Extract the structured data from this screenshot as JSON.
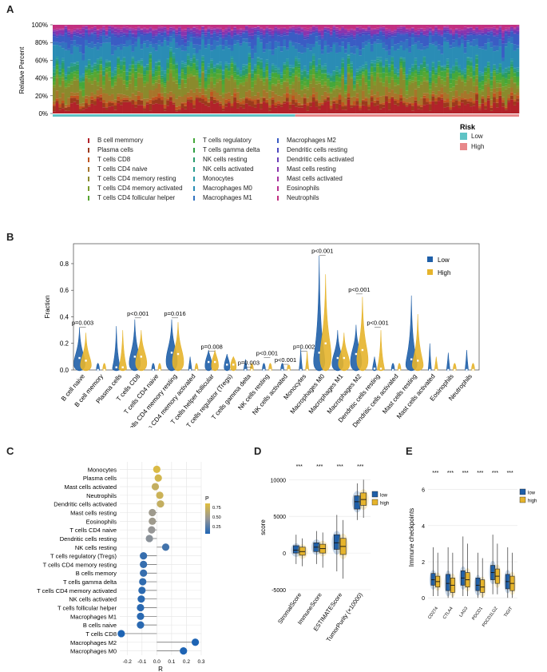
{
  "panels": [
    "A",
    "B",
    "C",
    "D",
    "E"
  ],
  "panelA": {
    "ylabel": "Relative Percent",
    "yticks": [
      "100%",
      "80%",
      "60%",
      "40%",
      "20%",
      "0%"
    ],
    "risk_legend": {
      "title": "Risk",
      "items": [
        {
          "label": "Low",
          "color": "#5fc3c5"
        },
        {
          "label": "High",
          "color": "#e8888a"
        }
      ]
    },
    "cell_types": [
      {
        "label": "B cell memmory",
        "color": "#b2222a"
      },
      {
        "label": "Plasma cells",
        "color": "#9c3a1c"
      },
      {
        "label": "T cells CD8",
        "color": "#c0541f"
      },
      {
        "label": "T cells CD4 naive",
        "color": "#a7752a"
      },
      {
        "label": "T cells CD4 memory resting",
        "color": "#8a8a2c"
      },
      {
        "label": "T cells CD4 memory activated",
        "color": "#7a9c2c"
      },
      {
        "label": "T cells CD4 follicular helper",
        "color": "#58a632"
      },
      {
        "label": "T cells regulatory",
        "color": "#44a83a"
      },
      {
        "label": "T cells gamma delta",
        "color": "#2e9e42"
      },
      {
        "label": "NK cells resting",
        "color": "#2a9b6c"
      },
      {
        "label": "NK cells activated",
        "color": "#2a9c8c"
      },
      {
        "label": "Monocytes",
        "color": "#2a99a6"
      },
      {
        "label": "Macrophages M0",
        "color": "#2a8cb5"
      },
      {
        "label": "Macrophages M1",
        "color": "#3272c0"
      },
      {
        "label": "Macrophages M2",
        "color": "#3a5cc4"
      },
      {
        "label": "Dendritic cells resting",
        "color": "#4d48c0"
      },
      {
        "label": "Dendritic cells activated",
        "color": "#6a3cb8"
      },
      {
        "label": "Mast cells resting",
        "color": "#8a34ae"
      },
      {
        "label": "Mast cells activated",
        "color": "#a632a0"
      },
      {
        "label": "Eosinophils",
        "color": "#b83090"
      },
      {
        "label": "Neutrophils",
        "color": "#c23080"
      }
    ],
    "stack_fractions": [
      0.09,
      0.04,
      0.03,
      0.06,
      0.12,
      0.03,
      0.05,
      0.04,
      0.01,
      0.04,
      0.03,
      0.02,
      0.18,
      0.06,
      0.08,
      0.02,
      0.02,
      0.03,
      0.01,
      0.01,
      0.03
    ],
    "low_fraction": 0.52
  },
  "chart_data": [
    {
      "panel": "B",
      "type": "violin",
      "ylabel": "Fraction",
      "ylim": [
        0,
        0.95
      ],
      "yticks": [
        "0.0",
        "0.2",
        "0.4",
        "0.6",
        "0.8"
      ],
      "ytick_values": [
        0,
        0.2,
        0.4,
        0.6,
        0.8
      ],
      "legend": [
        {
          "name": "Low",
          "color": "#1f5fa8"
        },
        {
          "name": "High",
          "color": "#e6b42c"
        }
      ],
      "categories": [
        "B cell naive",
        "B cell memory",
        "Plasma cells",
        "T cells CD8",
        "T cells CD4 naive",
        "T cells CD4 memory resting",
        "T cells CD4 memory activated",
        "T cells helper follicular",
        "T cells regulator (Tregs)",
        "T cells gamma delta",
        "NK cells resting",
        "NK cells activated",
        "Monocytes",
        "Macrophages M0",
        "Macrophages M1",
        "Macrophages M2",
        "Dendritic cells resting",
        "Dendritic cells activated",
        "Mast cells resting",
        "Mast cells activated",
        "Eosinophils",
        "Neutrophils"
      ],
      "median_low": [
        0.09,
        0.0,
        0.02,
        0.1,
        0.0,
        0.13,
        0.0,
        0.06,
        0.04,
        0.0,
        0.0,
        0.0,
        0.0,
        0.13,
        0.09,
        0.12,
        0.01,
        0.0,
        0.08,
        0.0,
        0.0,
        0.0
      ],
      "median_high": [
        0.07,
        0.0,
        0.02,
        0.1,
        0.0,
        0.12,
        0.0,
        0.06,
        0.04,
        0.0,
        0.0,
        0.0,
        0.0,
        0.2,
        0.09,
        0.15,
        0.01,
        0.0,
        0.07,
        0.0,
        0.0,
        0.0
      ],
      "max_low": [
        0.32,
        0.05,
        0.33,
        0.38,
        0.05,
        0.38,
        0.1,
        0.15,
        0.12,
        0.08,
        0.05,
        0.05,
        0.16,
        0.86,
        0.3,
        0.34,
        0.1,
        0.05,
        0.56,
        0.2,
        0.13,
        0.15
      ],
      "max_high": [
        0.28,
        0.05,
        0.3,
        0.3,
        0.05,
        0.36,
        0.05,
        0.15,
        0.1,
        0.05,
        0.05,
        0.03,
        0.14,
        0.72,
        0.28,
        0.55,
        0.3,
        0.05,
        0.42,
        0.1,
        0.05,
        0.05
      ],
      "annotations": [
        {
          "category": "B cell naive",
          "text": "p=0.003",
          "y": 0.34
        },
        {
          "category": "T cells CD8",
          "text": "p<0.001",
          "y": 0.41
        },
        {
          "category": "T cells CD4 memory resting",
          "text": "p=0.016",
          "y": 0.41
        },
        {
          "category": "T cells helper follicular",
          "text": "p=0.008",
          "y": 0.16
        },
        {
          "category": "T cells gamma delta",
          "text": "p=0.003",
          "y": 0.04
        },
        {
          "category": "NK cells resting",
          "text": "p<0.001",
          "y": 0.11
        },
        {
          "category": "NK cells activated",
          "text": "p<0.001",
          "y": 0.06
        },
        {
          "category": "Monocytes",
          "text": "p=0.002",
          "y": 0.16
        },
        {
          "category": "Macrophages M0",
          "text": "p<0.001",
          "y": 0.88
        },
        {
          "category": "Macrophages M2",
          "text": "p<0.001",
          "y": 0.59
        },
        {
          "category": "Dendritic cells resting",
          "text": "p<0.001",
          "y": 0.34
        }
      ]
    },
    {
      "panel": "C",
      "type": "scatter",
      "xlabel": "R",
      "xlim": [
        -0.25,
        0.3
      ],
      "xticks": [
        "-0.2",
        "-0.1",
        "0.0",
        "0.1",
        "0.2",
        "0.3"
      ],
      "xtick_values": [
        -0.2,
        -0.1,
        0,
        0.1,
        0.2,
        0.3
      ],
      "legend_title": "P",
      "legend_ticks": [
        "0.75",
        "0.50",
        "0.25"
      ],
      "categories": [
        "Monocytes",
        "Plasma cells",
        "Mast cells activated",
        "Neutrophils",
        "Dendritic cells activated",
        "Mast cells resting",
        "Eosinophils",
        "T cells CD4 naive",
        "Dendritic cells resting",
        "NK cells resting",
        "T cells regulatory (Tregs)",
        "T cells CD4 memory resting",
        "B cells memory",
        "T cells gamma delta",
        "T cells CD4 memory activated",
        "NK cells activated",
        "T cells follicular helper",
        "Macrophages M1",
        "B cells naive",
        "T cells CD8",
        "Macrophages M2",
        "Macrophages M0"
      ],
      "r": [
        0.0,
        0.01,
        -0.01,
        0.02,
        0.025,
        -0.03,
        -0.03,
        -0.035,
        -0.05,
        0.06,
        -0.09,
        -0.09,
        -0.09,
        -0.095,
        -0.1,
        -0.105,
        -0.11,
        -0.11,
        -0.11,
        -0.24,
        0.26,
        0.18
      ],
      "p": [
        0.95,
        0.9,
        0.8,
        0.85,
        0.8,
        0.55,
        0.55,
        0.5,
        0.45,
        0.15,
        0.1,
        0.1,
        0.1,
        0.08,
        0.06,
        0.05,
        0.05,
        0.05,
        0.05,
        0.0,
        0.0,
        0.0
      ]
    },
    {
      "panel": "D",
      "type": "box",
      "ylabel": "score",
      "ylim": [
        -5000,
        12000
      ],
      "yticks": [
        "10000",
        "5000",
        "0",
        "-5000"
      ],
      "ytick_values": [
        10000,
        5000,
        0,
        -5000
      ],
      "legend": [
        {
          "name": "low",
          "color": "#1f5fa8"
        },
        {
          "name": "high",
          "color": "#e6b42c"
        }
      ],
      "categories": [
        "StromalScore",
        "ImmuneScore",
        "ESTIMATEScore",
        "TumorPurity (×10000)"
      ],
      "sig": [
        "***",
        "***",
        "***",
        "***"
      ],
      "low": [
        {
          "q1": 0,
          "med": 400,
          "q3": 1000,
          "min": -1500,
          "max": 2500
        },
        {
          "q1": 200,
          "med": 800,
          "q3": 1400,
          "min": -1500,
          "max": 3000
        },
        {
          "q1": 500,
          "med": 1400,
          "q3": 2500,
          "min": -2500,
          "max": 5200
        },
        {
          "q1": 6000,
          "med": 7000,
          "q3": 7800,
          "min": 4500,
          "max": 9500
        }
      ],
      "high": [
        {
          "q1": -300,
          "med": 200,
          "q3": 800,
          "min": -1800,
          "max": 2000
        },
        {
          "q1": 0,
          "med": 600,
          "q3": 1200,
          "min": -2000,
          "max": 2800
        },
        {
          "q1": -200,
          "med": 900,
          "q3": 2000,
          "min": -3500,
          "max": 4500
        },
        {
          "q1": 6500,
          "med": 7300,
          "q3": 8200,
          "min": 4800,
          "max": 10000
        }
      ]
    },
    {
      "panel": "E",
      "type": "box",
      "ylabel": "Immune checkpoints",
      "ylim": [
        -0.3,
        7
      ],
      "yticks": [
        "6",
        "4",
        "2",
        "0"
      ],
      "ytick_values": [
        6,
        4,
        2,
        0
      ],
      "legend": [
        {
          "name": "low",
          "color": "#1f5fa8"
        },
        {
          "name": "high",
          "color": "#e6b42c"
        }
      ],
      "categories": [
        "CD274",
        "CTLA4",
        "LAG3",
        "PDCD1",
        "PDCD1LG2",
        "TIGIT"
      ],
      "sig": [
        "***",
        "***",
        "***",
        "***",
        "***",
        "***"
      ],
      "low": [
        {
          "q1": 0.7,
          "med": 1.0,
          "q3": 1.35,
          "min": 0.1,
          "max": 2.8
        },
        {
          "q1": 0.4,
          "med": 0.8,
          "q3": 1.3,
          "min": 0,
          "max": 2.8
        },
        {
          "q1": 0.7,
          "med": 1.1,
          "q3": 1.5,
          "min": 0.1,
          "max": 3.4
        },
        {
          "q1": 0.4,
          "med": 0.7,
          "q3": 1.1,
          "min": 0,
          "max": 2.5
        },
        {
          "q1": 1.0,
          "med": 1.4,
          "q3": 1.8,
          "min": 0.2,
          "max": 3.5
        },
        {
          "q1": 0.5,
          "med": 0.9,
          "q3": 1.3,
          "min": 0,
          "max": 2.8
        }
      ],
      "high": [
        {
          "q1": 0.6,
          "med": 0.9,
          "q3": 1.2,
          "min": 0.1,
          "max": 2.5
        },
        {
          "q1": 0.3,
          "med": 0.7,
          "q3": 1.1,
          "min": 0,
          "max": 2.5
        },
        {
          "q1": 0.6,
          "med": 1.0,
          "q3": 1.4,
          "min": 0.1,
          "max": 3.0
        },
        {
          "q1": 0.3,
          "med": 0.6,
          "q3": 1.0,
          "min": 0,
          "max": 2.2
        },
        {
          "q1": 0.8,
          "med": 1.2,
          "q3": 1.6,
          "min": 0.2,
          "max": 3.0
        },
        {
          "q1": 0.4,
          "med": 0.8,
          "q3": 1.2,
          "min": 0,
          "max": 2.5
        }
      ]
    }
  ]
}
